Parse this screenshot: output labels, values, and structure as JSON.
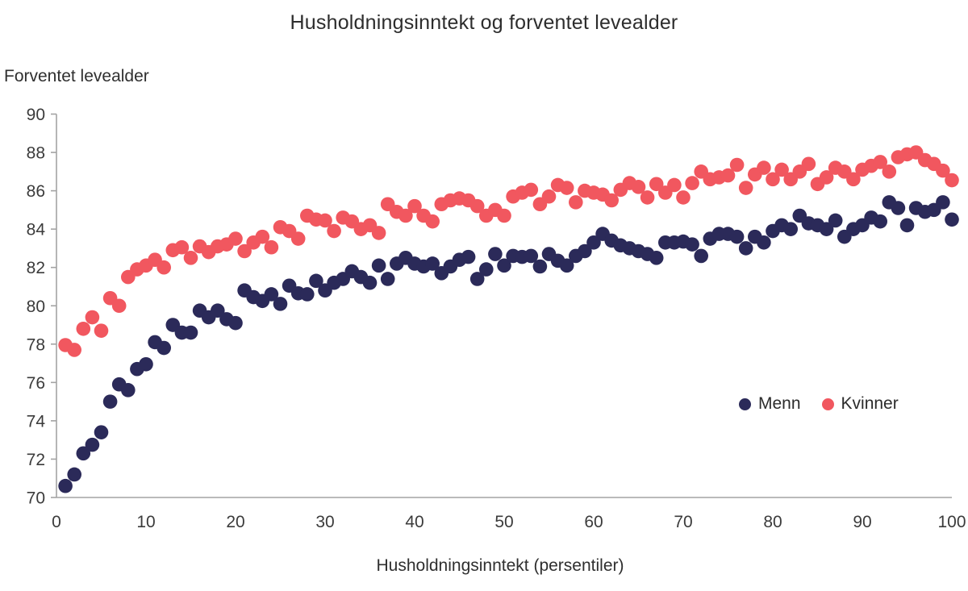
{
  "title": "Husholdningsinntekt og forventet levealder",
  "y_axis_title": "Forventet levealder",
  "x_axis_title": "Husholdningsinntekt (persentiler)",
  "legend": {
    "menn_label": "Menn",
    "kvinner_label": "Kvinner"
  },
  "colors": {
    "menn": "#2b2a59",
    "kvinner": "#f1575f",
    "axis": "#a3a3a3",
    "tick_text": "#3b3b3b",
    "title_text": "#2d2d2d"
  },
  "chart_data": {
    "type": "scatter",
    "title": "Husholdningsinntekt og forventet levealder",
    "xlabel": "Husholdningsinntekt (persentiler)",
    "ylabel": "Forventet levealder",
    "xlim": [
      0,
      100
    ],
    "ylim": [
      70,
      90
    ],
    "x_tick_step": 10,
    "y_tick_step": 2,
    "grid": false,
    "legend_position": "right-middle",
    "marker_radius_px": 8.8,
    "x": [
      1,
      2,
      3,
      4,
      5,
      6,
      7,
      8,
      9,
      10,
      11,
      12,
      13,
      14,
      15,
      16,
      17,
      18,
      19,
      20,
      21,
      22,
      23,
      24,
      25,
      26,
      27,
      28,
      29,
      30,
      31,
      32,
      33,
      34,
      35,
      36,
      37,
      38,
      39,
      40,
      41,
      42,
      43,
      44,
      45,
      46,
      47,
      48,
      49,
      50,
      51,
      52,
      53,
      54,
      55,
      56,
      57,
      58,
      59,
      60,
      61,
      62,
      63,
      64,
      65,
      66,
      67,
      68,
      69,
      70,
      71,
      72,
      73,
      74,
      75,
      76,
      77,
      78,
      79,
      80,
      81,
      82,
      83,
      84,
      85,
      86,
      87,
      88,
      89,
      90,
      91,
      92,
      93,
      94,
      95,
      96,
      97,
      98,
      99,
      100
    ],
    "series": [
      {
        "name": "Menn",
        "color": "#2b2a59",
        "values": [
          70.6,
          71.2,
          72.3,
          72.75,
          73.4,
          75.0,
          75.9,
          75.6,
          76.7,
          76.95,
          78.1,
          77.8,
          79.0,
          78.6,
          78.6,
          79.75,
          79.4,
          79.75,
          79.3,
          79.1,
          80.8,
          80.45,
          80.25,
          80.6,
          80.1,
          81.05,
          80.65,
          80.6,
          81.3,
          80.8,
          81.2,
          81.4,
          81.8,
          81.5,
          81.2,
          82.1,
          81.4,
          82.2,
          82.5,
          82.2,
          82.05,
          82.2,
          81.7,
          82.05,
          82.4,
          82.55,
          81.4,
          81.9,
          82.7,
          82.1,
          82.6,
          82.55,
          82.6,
          82.05,
          82.7,
          82.35,
          82.1,
          82.6,
          82.85,
          83.3,
          83.75,
          83.4,
          83.15,
          83.0,
          82.85,
          82.7,
          82.5,
          83.3,
          83.3,
          83.35,
          83.2,
          82.6,
          83.5,
          83.75,
          83.75,
          83.6,
          83.0,
          83.6,
          83.3,
          83.9,
          84.2,
          84.0,
          84.7,
          84.3,
          84.2,
          84.0,
          84.45,
          83.6,
          84.0,
          84.2,
          84.6,
          84.4,
          85.4,
          85.1,
          84.2,
          85.1,
          84.9,
          85.0,
          85.4,
          84.5
        ]
      },
      {
        "name": "Kvinner",
        "color": "#f1575f",
        "values": [
          77.95,
          77.7,
          78.8,
          79.4,
          78.7,
          80.4,
          80.0,
          81.5,
          81.9,
          82.1,
          82.4,
          82.0,
          82.9,
          83.05,
          82.5,
          83.1,
          82.8,
          83.1,
          83.2,
          83.5,
          82.85,
          83.3,
          83.6,
          83.05,
          84.1,
          83.9,
          83.5,
          84.7,
          84.5,
          84.45,
          83.9,
          84.6,
          84.4,
          84.0,
          84.2,
          83.8,
          85.3,
          84.9,
          84.7,
          85.2,
          84.7,
          84.4,
          85.3,
          85.5,
          85.6,
          85.5,
          85.2,
          84.7,
          85.0,
          84.7,
          85.7,
          85.9,
          86.05,
          85.3,
          85.7,
          86.3,
          86.15,
          85.4,
          86.0,
          85.9,
          85.8,
          85.5,
          86.05,
          86.4,
          86.2,
          85.65,
          86.35,
          85.9,
          86.3,
          85.65,
          86.4,
          87.0,
          86.6,
          86.7,
          86.8,
          87.35,
          86.15,
          86.85,
          87.2,
          86.6,
          87.1,
          86.6,
          87.0,
          87.4,
          86.35,
          86.7,
          87.2,
          87.0,
          86.6,
          87.1,
          87.3,
          87.5,
          87.0,
          87.75,
          87.9,
          88.0,
          87.6,
          87.4,
          87.05,
          86.55
        ]
      }
    ],
    "y_ticks": [
      70,
      72,
      74,
      76,
      78,
      80,
      82,
      84,
      86,
      88,
      90
    ],
    "x_ticks": [
      0,
      10,
      20,
      30,
      40,
      50,
      60,
      70,
      80,
      90,
      100
    ]
  }
}
